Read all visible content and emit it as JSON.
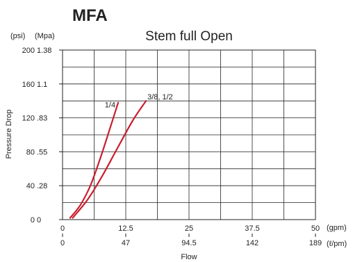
{
  "chart_data": {
    "type": "line",
    "heading": "MFA",
    "title": "Stem full Open",
    "xlabel": "Flow",
    "ylabel": "Pressure Drop",
    "x_unit_primary": "(gpm)",
    "x_unit_secondary": "(ℓ/pm)",
    "y_unit_primary": "(psi)",
    "y_unit_secondary": "(Mpa)",
    "xlim": [
      0,
      50
    ],
    "ylim": [
      0,
      200
    ],
    "grid": true,
    "x_ticks": [
      0,
      12.5,
      25,
      37.5,
      50
    ],
    "x_tick_labels_primary": [
      "0",
      "12.5",
      "25",
      "37.5",
      "50"
    ],
    "x_tick_labels_secondary": [
      "0",
      "47",
      "94.5",
      "142",
      "189"
    ],
    "y_ticks": [
      0,
      40,
      80,
      120,
      160,
      200
    ],
    "y_tick_labels_primary": [
      "0",
      "40",
      "80",
      "120",
      "160",
      "200"
    ],
    "y_tick_labels_secondary": [
      "0",
      ".28",
      ".55",
      ".83",
      "1.1",
      "1.38"
    ],
    "series_color": "#c81e2e",
    "series": [
      {
        "name": "1/4",
        "x": [
          1.5,
          3.5,
          5.5,
          7.5,
          9.5,
          11.0
        ],
        "y": [
          2,
          17,
          40,
          73,
          110,
          138
        ]
      },
      {
        "name": "3/8, 1/2",
        "x": [
          2.0,
          5.0,
          8.0,
          11.0,
          14.0,
          16.5
        ],
        "y": [
          2,
          24,
          53,
          86,
          118,
          140
        ]
      }
    ]
  }
}
